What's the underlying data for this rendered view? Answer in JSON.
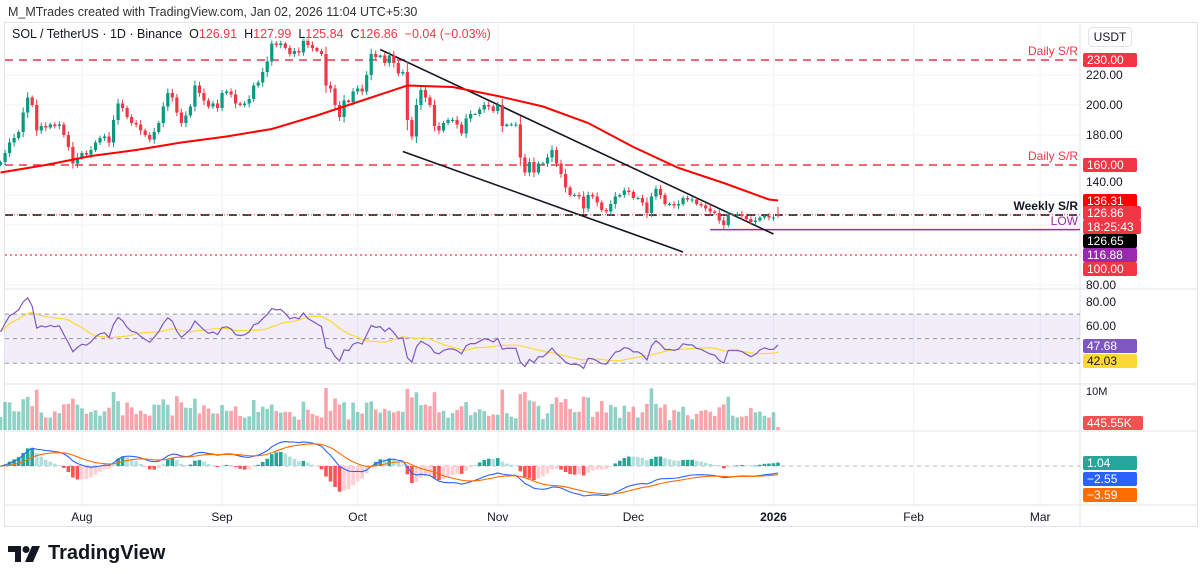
{
  "credit": "M_MTrades created with TradingView.com, Jan 02, 2026 11:04 UTC+5:30",
  "legend": {
    "symbol": "SOL / TetherUS · 1D · Binance",
    "o_label": "O",
    "o": "126.91",
    "h_label": "H",
    "h": "127.99",
    "l_label": "L",
    "l": "125.84",
    "c_label": "C",
    "c": "126.86",
    "change": "−0.04 (−0.03%)"
  },
  "currency": "USDT",
  "logo_text": "TradingView",
  "colors": {
    "up": "#089981",
    "down": "#f23645",
    "ma": "#ff0000",
    "rsi": "#7e57c2",
    "rsi_ma": "#fdd835",
    "macd": "#2962ff",
    "signal": "#ff6d00",
    "low_line": "#9c27b0"
  },
  "chart_data": {
    "type": "candlestick",
    "interval": "1D",
    "last_date": "2026-01-02",
    "last_bar": {
      "open": 126.91,
      "high": 127.99,
      "low": 125.84,
      "close": 126.86
    },
    "closes": [
      162,
      168,
      175,
      178,
      182,
      195,
      205,
      200,
      183,
      186,
      185,
      187,
      186,
      187,
      180,
      172,
      161,
      165,
      168,
      167,
      170,
      175,
      178,
      179,
      175,
      190,
      201,
      198,
      192,
      188,
      187,
      183,
      180,
      177,
      182,
      188,
      199,
      208,
      205,
      195,
      188,
      193,
      199,
      213,
      208,
      203,
      199,
      201,
      198,
      208,
      209,
      207,
      201,
      200,
      201,
      204,
      213,
      215,
      222,
      229,
      241,
      240,
      241,
      238,
      234,
      236,
      235,
      244,
      240,
      238,
      236,
      234,
      213,
      211,
      200,
      192,
      203,
      202,
      209,
      211,
      209,
      220,
      234,
      232,
      233,
      228,
      233,
      228,
      221,
      222,
      190,
      179,
      200,
      210,
      205,
      200,
      186,
      183,
      188,
      190,
      190,
      187,
      181,
      191,
      194,
      194,
      197,
      200,
      199,
      196,
      200,
      186,
      187,
      187,
      187,
      165,
      155,
      162,
      155,
      161,
      161,
      165,
      170,
      161,
      154,
      145,
      140,
      140,
      139,
      131,
      140,
      139,
      135,
      130,
      129,
      134,
      139,
      140,
      143,
      142,
      138,
      138,
      135,
      128,
      139,
      144,
      140,
      134,
      134,
      133,
      134,
      138,
      137,
      137,
      134,
      133,
      131,
      129,
      128,
      123,
      120,
      127,
      127,
      127,
      126,
      124,
      122,
      123,
      125,
      126,
      125,
      125,
      126.86
    ],
    "moving_average": {
      "every_n_bars": 10,
      "values": [
        155,
        160,
        166,
        170,
        175,
        179,
        184,
        193,
        203,
        213,
        212,
        206,
        199,
        188,
        172,
        158,
        148,
        137,
        136.31
      ]
    },
    "y_ticks": [
      80,
      100,
      120,
      140,
      160,
      180,
      200,
      220,
      230
    ],
    "y_tick_labels": [
      "80.00",
      "200.00",
      "220.00",
      "180.00",
      "140.00"
    ],
    "ylim": [
      78,
      252
    ],
    "x_ticks": [
      {
        "label": "Aug",
        "date": "2025-08-01"
      },
      {
        "label": "Sep",
        "date": "2025-09-01"
      },
      {
        "label": "Oct",
        "date": "2025-10-01"
      },
      {
        "label": "Nov",
        "date": "2025-11-01"
      },
      {
        "label": "Dec",
        "date": "2025-12-01"
      },
      {
        "label": "2026",
        "date": "2026-01-01"
      },
      {
        "label": "Feb",
        "date": "2026-02-01"
      },
      {
        "label": "Mar",
        "date": "2026-03-01"
      }
    ],
    "levels": [
      {
        "label": "Daily S/R",
        "price": 230.0,
        "price_label": "230.00",
        "style": "dashed",
        "color": "#f23645"
      },
      {
        "label": "Daily S/R",
        "price": 160.0,
        "price_label": "160.00",
        "style": "dashed",
        "color": "#f23645"
      },
      {
        "label": "Weekly S/R",
        "price": 126.65,
        "price_label": "126.65",
        "style": "dashed",
        "color": "#000000"
      },
      {
        "label": "LOW",
        "price": 116.88,
        "price_label": "116.88",
        "style": "solid",
        "color": "#9c27b0",
        "from_date": "2025-12-18"
      },
      {
        "label": "",
        "price": 100.0,
        "price_label": "100.00",
        "style": "dotted",
        "color": "#f23645"
      }
    ],
    "trendlines": [
      {
        "from": {
          "date": "2025-10-06",
          "price": 237
        },
        "to": {
          "date": "2026-01-01",
          "price": 114
        }
      },
      {
        "from": {
          "date": "2025-10-11",
          "price": 169
        },
        "to": {
          "date": "2025-12-12",
          "price": 102
        }
      }
    ],
    "price_tags": {
      "ma": "136.31",
      "last": "126.86",
      "countdown": "18:25:43"
    },
    "rsi": {
      "ticks": [
        "80.00",
        "60.00"
      ],
      "bands": [
        70,
        50,
        30
      ],
      "value": "47.68",
      "ma_value": "42.03",
      "ylim": [
        18,
        88
      ]
    },
    "volume": {
      "tick": "10M",
      "value": "445.55K"
    },
    "macd": {
      "histogram": "1.04",
      "macd": "−2.55",
      "signal": "−3.59"
    }
  }
}
